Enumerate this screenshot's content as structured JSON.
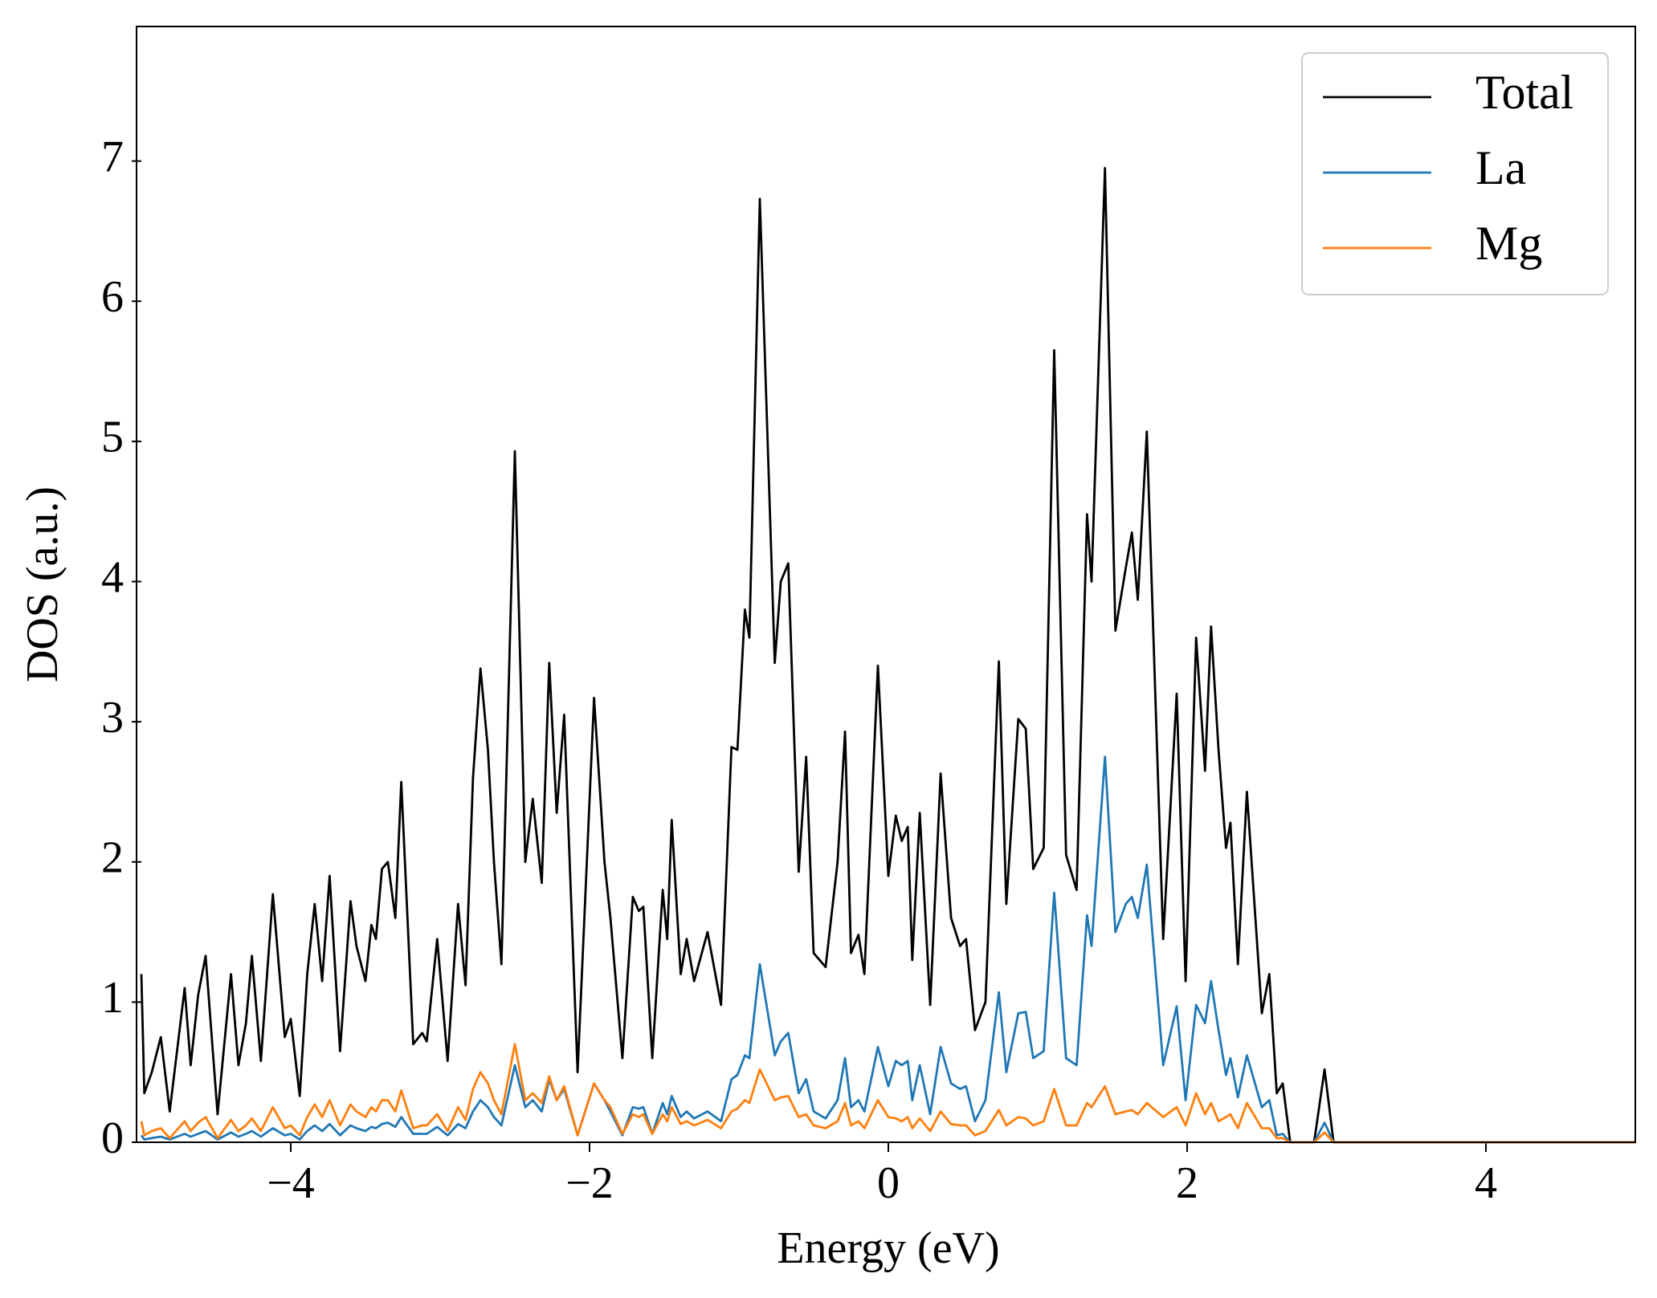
{
  "chart_data": {
    "type": "line",
    "xlabel": "Energy (eV)",
    "ylabel": "DOS (a.u.)",
    "x": [
      -5.0,
      -4.98,
      -4.93,
      -4.87,
      -4.81,
      -4.71,
      -4.67,
      -4.62,
      -4.57,
      -4.49,
      -4.4,
      -4.35,
      -4.3,
      -4.26,
      -4.2,
      -4.12,
      -4.04,
      -4.0,
      -3.94,
      -3.89,
      -3.84,
      -3.79,
      -3.74,
      -3.67,
      -3.6,
      -3.56,
      -3.5,
      -3.46,
      -3.43,
      -3.39,
      -3.35,
      -3.3,
      -3.26,
      -3.18,
      -3.12,
      -3.09,
      -3.02,
      -2.95,
      -2.88,
      -2.83,
      -2.78,
      -2.73,
      -2.68,
      -2.64,
      -2.59,
      -2.5,
      -2.43,
      -2.38,
      -2.32,
      -2.27,
      -2.22,
      -2.17,
      -2.08,
      -1.97,
      -1.9,
      -1.86,
      -1.78,
      -1.71,
      -1.67,
      -1.64,
      -1.58,
      -1.51,
      -1.48,
      -1.45,
      -1.39,
      -1.35,
      -1.3,
      -1.21,
      -1.12,
      -1.05,
      -1.01,
      -0.96,
      -0.93,
      -0.86,
      -0.76,
      -0.72,
      -0.67,
      -0.6,
      -0.55,
      -0.5,
      -0.42,
      -0.34,
      -0.29,
      -0.25,
      -0.2,
      -0.16,
      -0.07,
      0.0,
      0.05,
      0.09,
      0.13,
      0.16,
      0.21,
      0.28,
      0.35,
      0.42,
      0.48,
      0.52,
      0.58,
      0.65,
      0.74,
      0.79,
      0.87,
      0.92,
      0.97,
      1.04,
      1.11,
      1.19,
      1.26,
      1.33,
      1.36,
      1.45,
      1.52,
      1.59,
      1.63,
      1.67,
      1.73,
      1.84,
      1.93,
      1.99,
      2.06,
      2.12,
      2.16,
      2.21,
      2.26,
      2.29,
      2.34,
      2.4,
      2.5,
      2.55,
      2.6,
      2.64,
      2.69,
      2.85,
      2.92,
      2.98,
      3.1,
      5.0
    ],
    "series": [
      {
        "name": "Total",
        "color": "#000000",
        "values": [
          1.2,
          0.35,
          0.5,
          0.75,
          0.22,
          1.1,
          0.55,
          1.05,
          1.33,
          0.2,
          1.2,
          0.55,
          0.85,
          1.33,
          0.58,
          1.77,
          0.75,
          0.88,
          0.33,
          1.2,
          1.7,
          1.15,
          1.9,
          0.65,
          1.72,
          1.4,
          1.15,
          1.55,
          1.45,
          1.95,
          2.0,
          1.6,
          2.57,
          0.7,
          0.78,
          0.72,
          1.45,
          0.58,
          1.7,
          1.12,
          2.6,
          3.38,
          2.8,
          2.0,
          1.27,
          4.93,
          2.0,
          2.45,
          1.85,
          3.42,
          2.35,
          3.05,
          0.5,
          3.17,
          2.0,
          1.6,
          0.6,
          1.75,
          1.65,
          1.68,
          0.6,
          1.8,
          1.45,
          2.3,
          1.2,
          1.45,
          1.15,
          1.5,
          0.98,
          2.82,
          2.8,
          3.8,
          3.6,
          6.73,
          3.42,
          4.0,
          4.13,
          1.93,
          2.75,
          1.35,
          1.25,
          2.0,
          2.93,
          1.35,
          1.48,
          1.2,
          3.4,
          1.9,
          2.33,
          2.15,
          2.25,
          1.3,
          2.35,
          0.98,
          2.63,
          1.6,
          1.4,
          1.45,
          0.8,
          1.0,
          3.43,
          1.7,
          3.02,
          2.95,
          1.95,
          2.1,
          5.65,
          2.05,
          1.8,
          4.48,
          4.0,
          6.95,
          3.65,
          4.1,
          4.35,
          3.87,
          5.07,
          1.45,
          3.2,
          1.15,
          3.6,
          2.65,
          3.68,
          2.8,
          2.1,
          2.28,
          1.27,
          2.5,
          0.92,
          1.2,
          0.35,
          0.42,
          0.0,
          0.0,
          0.52,
          0.0,
          0.0,
          0.0
        ]
      },
      {
        "name": "La",
        "color": "#1f77b4",
        "values": [
          0.05,
          0.02,
          0.03,
          0.04,
          0.02,
          0.06,
          0.04,
          0.06,
          0.08,
          0.02,
          0.07,
          0.04,
          0.06,
          0.08,
          0.04,
          0.1,
          0.05,
          0.06,
          0.02,
          0.08,
          0.12,
          0.08,
          0.13,
          0.05,
          0.12,
          0.1,
          0.08,
          0.11,
          0.1,
          0.13,
          0.14,
          0.11,
          0.18,
          0.06,
          0.06,
          0.06,
          0.11,
          0.05,
          0.13,
          0.1,
          0.22,
          0.3,
          0.25,
          0.18,
          0.12,
          0.55,
          0.25,
          0.3,
          0.22,
          0.45,
          0.3,
          0.38,
          0.05,
          0.42,
          0.3,
          0.22,
          0.05,
          0.25,
          0.24,
          0.25,
          0.06,
          0.28,
          0.2,
          0.33,
          0.18,
          0.22,
          0.17,
          0.22,
          0.15,
          0.45,
          0.48,
          0.62,
          0.6,
          1.27,
          0.62,
          0.72,
          0.78,
          0.35,
          0.45,
          0.22,
          0.17,
          0.3,
          0.6,
          0.25,
          0.3,
          0.22,
          0.68,
          0.4,
          0.58,
          0.55,
          0.58,
          0.3,
          0.55,
          0.2,
          0.68,
          0.42,
          0.38,
          0.4,
          0.15,
          0.3,
          1.07,
          0.5,
          0.92,
          0.93,
          0.6,
          0.65,
          1.78,
          0.6,
          0.55,
          1.62,
          1.4,
          2.75,
          1.5,
          1.7,
          1.75,
          1.6,
          1.98,
          0.55,
          0.97,
          0.3,
          0.98,
          0.85,
          1.15,
          0.8,
          0.48,
          0.6,
          0.32,
          0.62,
          0.25,
          0.3,
          0.05,
          0.06,
          0.0,
          0.0,
          0.14,
          0.0,
          0.0,
          0.0
        ]
      },
      {
        "name": "Mg",
        "color": "#ff7f0e",
        "values": [
          0.15,
          0.05,
          0.08,
          0.1,
          0.03,
          0.15,
          0.08,
          0.14,
          0.18,
          0.03,
          0.16,
          0.08,
          0.12,
          0.17,
          0.08,
          0.25,
          0.1,
          0.12,
          0.05,
          0.18,
          0.27,
          0.18,
          0.3,
          0.12,
          0.27,
          0.22,
          0.18,
          0.25,
          0.22,
          0.3,
          0.3,
          0.22,
          0.37,
          0.1,
          0.12,
          0.12,
          0.2,
          0.08,
          0.25,
          0.16,
          0.38,
          0.5,
          0.42,
          0.3,
          0.2,
          0.7,
          0.3,
          0.35,
          0.28,
          0.47,
          0.3,
          0.4,
          0.05,
          0.42,
          0.3,
          0.25,
          0.06,
          0.2,
          0.18,
          0.2,
          0.06,
          0.2,
          0.15,
          0.25,
          0.13,
          0.15,
          0.12,
          0.16,
          0.1,
          0.22,
          0.24,
          0.3,
          0.28,
          0.52,
          0.3,
          0.32,
          0.33,
          0.18,
          0.2,
          0.12,
          0.1,
          0.15,
          0.28,
          0.12,
          0.15,
          0.1,
          0.3,
          0.18,
          0.17,
          0.15,
          0.18,
          0.1,
          0.17,
          0.08,
          0.22,
          0.13,
          0.12,
          0.12,
          0.05,
          0.08,
          0.23,
          0.12,
          0.18,
          0.17,
          0.12,
          0.15,
          0.38,
          0.12,
          0.12,
          0.28,
          0.25,
          0.4,
          0.2,
          0.22,
          0.23,
          0.2,
          0.28,
          0.18,
          0.25,
          0.12,
          0.35,
          0.2,
          0.28,
          0.15,
          0.18,
          0.2,
          0.1,
          0.28,
          0.1,
          0.1,
          0.03,
          0.03,
          0.0,
          0.0,
          0.07,
          0.0,
          0.0,
          0.0
        ]
      }
    ],
    "xlim": [
      -5,
      5
    ],
    "xticks": [
      {
        "value": -4,
        "label": "−4"
      },
      {
        "value": -2,
        "label": "−2"
      },
      0,
      2,
      4
    ],
    "ylim": [
      0,
      7.96
    ],
    "yticks": [
      0,
      1,
      2,
      3,
      4,
      5,
      6,
      7
    ],
    "legend": "upper right",
    "grid": false
  }
}
